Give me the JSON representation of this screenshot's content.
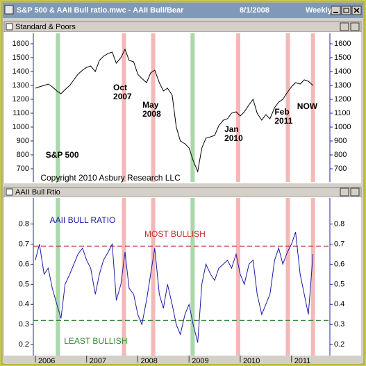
{
  "window": {
    "title": "S&P 500 & AAII Bull ratio.mwc - AAII Bull/Bear",
    "date": "8/1/2008",
    "period": "Weekly"
  },
  "chart_data": [
    {
      "type": "line",
      "title": "Standard & Poors",
      "x": [
        2006.0,
        2006.08,
        2006.17,
        2006.25,
        2006.33,
        2006.42,
        2006.5,
        2006.58,
        2006.67,
        2006.75,
        2006.83,
        2006.92,
        2007.0,
        2007.08,
        2007.17,
        2007.25,
        2007.33,
        2007.42,
        2007.5,
        2007.58,
        2007.67,
        2007.75,
        2007.83,
        2007.92,
        2008.0,
        2008.08,
        2008.17,
        2008.25,
        2008.33,
        2008.42,
        2008.5,
        2008.58,
        2008.67,
        2008.75,
        2008.83,
        2008.92,
        2009.0,
        2009.08,
        2009.17,
        2009.25,
        2009.33,
        2009.42,
        2009.5,
        2009.58,
        2009.67,
        2009.75,
        2009.83,
        2009.92,
        2010.0,
        2010.08,
        2010.17,
        2010.25,
        2010.33,
        2010.42,
        2010.5,
        2010.58,
        2010.67,
        2010.75,
        2010.83,
        2010.92,
        2011.0,
        2011.08,
        2011.17,
        2011.25,
        2011.33,
        2011.42
      ],
      "series": [
        {
          "color": "#000000",
          "values": [
            1280,
            1290,
            1300,
            1310,
            1290,
            1260,
            1240,
            1270,
            1300,
            1340,
            1380,
            1410,
            1430,
            1440,
            1400,
            1480,
            1510,
            1530,
            1540,
            1460,
            1500,
            1560,
            1480,
            1470,
            1380,
            1350,
            1320,
            1390,
            1410,
            1320,
            1260,
            1280,
            1230,
            1000,
            900,
            880,
            850,
            760,
            680,
            850,
            920,
            930,
            940,
            1010,
            1050,
            1060,
            1100,
            1110,
            1080,
            1110,
            1160,
            1200,
            1100,
            1050,
            1090,
            1060,
            1140,
            1180,
            1200,
            1250,
            1290,
            1320,
            1310,
            1340,
            1330,
            1300
          ]
        }
      ],
      "xlim": [
        2005.96,
        2011.75
      ],
      "ylim": [
        605,
        1675
      ],
      "yticks": [
        700,
        800,
        900,
        1000,
        1100,
        1200,
        1300,
        1400,
        1500,
        1600
      ],
      "highlights": [
        {
          "x": 2006.44,
          "color": "#8fc98f"
        },
        {
          "x": 2007.73,
          "color": "#f2a0a0"
        },
        {
          "x": 2008.3,
          "color": "#f2a0a0"
        },
        {
          "x": 2009.07,
          "color": "#8fc98f"
        },
        {
          "x": 2009.96,
          "color": "#f2a0a0"
        },
        {
          "x": 2010.93,
          "color": "#f2a0a0"
        },
        {
          "x": 2011.42,
          "color": "#f2a0a0"
        }
      ],
      "annotations": [
        {
          "text": "S&P 500",
          "x": 2006.2,
          "y": 840,
          "color": "#000000",
          "bold": true
        },
        {
          "text": "Oct 2007",
          "x": 2007.52,
          "y": 1315,
          "color": "#000000",
          "bold": true
        },
        {
          "text": "May 2008",
          "x": 2008.09,
          "y": 1190,
          "color": "#000000",
          "bold": true
        },
        {
          "text": "Jan 2010",
          "x": 2009.69,
          "y": 1015,
          "color": "#000000",
          "bold": true
        },
        {
          "text": "Feb 2011",
          "x": 2010.67,
          "y": 1140,
          "color": "#000000",
          "bold": true
        },
        {
          "text": "NOW",
          "x": 2011.11,
          "y": 1190,
          "color": "#000000",
          "bold": true
        },
        {
          "text": "Copyright 2010 Asbury Research LLC",
          "x": 2006.1,
          "y": 665,
          "color": "#000000",
          "bold": false
        }
      ]
    },
    {
      "type": "line",
      "title": "AAII Bull Rtio",
      "x": [
        2006.0,
        2006.08,
        2006.17,
        2006.25,
        2006.33,
        2006.42,
        2006.5,
        2006.58,
        2006.67,
        2006.75,
        2006.83,
        2006.92,
        2007.0,
        2007.08,
        2007.17,
        2007.25,
        2007.33,
        2007.42,
        2007.5,
        2007.58,
        2007.67,
        2007.75,
        2007.83,
        2007.92,
        2008.0,
        2008.08,
        2008.17,
        2008.25,
        2008.33,
        2008.42,
        2008.5,
        2008.58,
        2008.67,
        2008.75,
        2008.83,
        2008.92,
        2009.0,
        2009.08,
        2009.17,
        2009.25,
        2009.33,
        2009.42,
        2009.5,
        2009.58,
        2009.67,
        2009.75,
        2009.83,
        2009.92,
        2010.0,
        2010.08,
        2010.17,
        2010.25,
        2010.33,
        2010.42,
        2010.5,
        2010.58,
        2010.67,
        2010.75,
        2010.83,
        2010.92,
        2011.0,
        2011.08,
        2011.17,
        2011.25,
        2011.33,
        2011.42
      ],
      "series": [
        {
          "color": "#1a1aa8",
          "values": [
            0.62,
            0.7,
            0.55,
            0.58,
            0.48,
            0.4,
            0.33,
            0.5,
            0.55,
            0.6,
            0.65,
            0.68,
            0.62,
            0.58,
            0.45,
            0.55,
            0.62,
            0.66,
            0.7,
            0.42,
            0.5,
            0.66,
            0.48,
            0.45,
            0.35,
            0.3,
            0.42,
            0.55,
            0.68,
            0.45,
            0.38,
            0.5,
            0.4,
            0.3,
            0.25,
            0.35,
            0.4,
            0.3,
            0.21,
            0.5,
            0.6,
            0.55,
            0.52,
            0.58,
            0.6,
            0.62,
            0.58,
            0.65,
            0.55,
            0.5,
            0.6,
            0.62,
            0.45,
            0.35,
            0.4,
            0.45,
            0.62,
            0.68,
            0.6,
            0.66,
            0.7,
            0.76,
            0.55,
            0.45,
            0.35,
            0.65
          ]
        }
      ],
      "xlim": [
        2005.96,
        2011.75
      ],
      "ylim": [
        0.145,
        0.93
      ],
      "xticks": [
        2006,
        2007,
        2008,
        2009,
        2010,
        2011
      ],
      "yticks": [
        0.2,
        0.3,
        0.4,
        0.5,
        0.6,
        0.7,
        0.8
      ],
      "reference_lines": [
        {
          "value": 0.69,
          "color": "#c03030"
        },
        {
          "value": 0.32,
          "color": "#3a8a3a"
        }
      ],
      "annotations": [
        {
          "text": "AAII BULL RATIO",
          "x": 2006.28,
          "y": 0.84,
          "color": "#1a1aa8",
          "bold": false
        },
        {
          "text": "MOST BULLISH",
          "x": 2008.13,
          "y": 0.77,
          "color": "#c03030",
          "bold": false
        },
        {
          "text": "LEAST BULLISH",
          "x": 2006.56,
          "y": 0.24,
          "color": "#2a8a2a",
          "bold": false
        }
      ]
    }
  ]
}
